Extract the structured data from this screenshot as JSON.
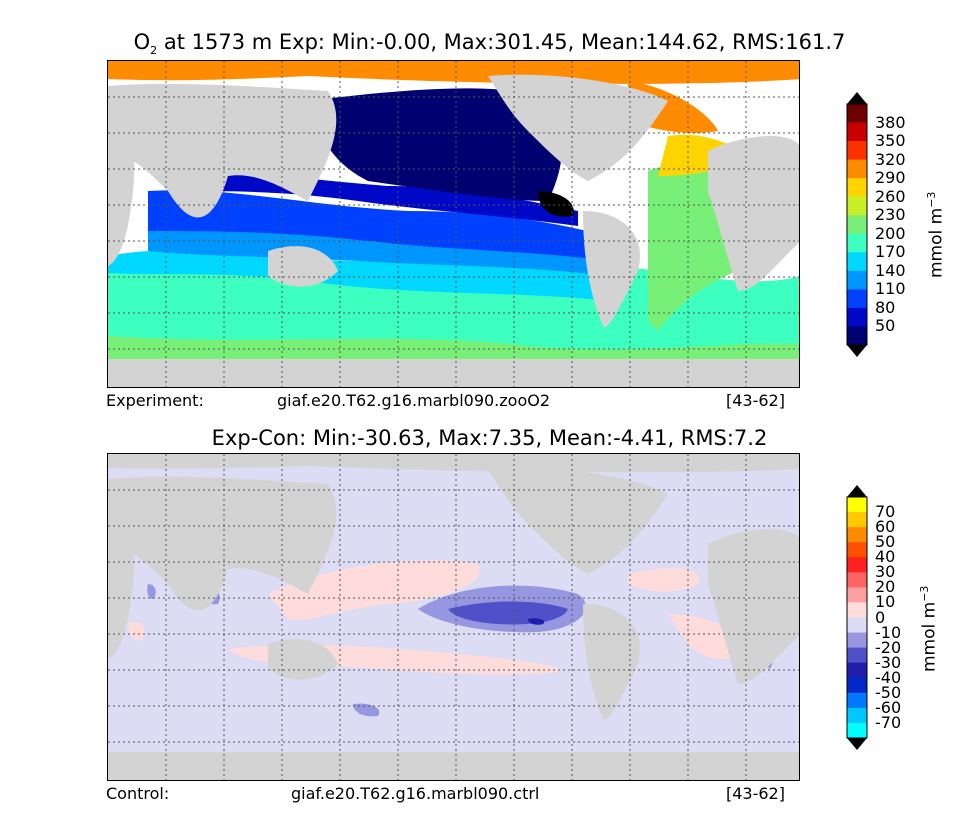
{
  "top": {
    "title_pre": "O",
    "title_sub": "2",
    "title_post": " at 1573 m Exp: Min:-0.00, Max:301.45, Mean:144.62, RMS:161.7",
    "caption_left": "Experiment:",
    "caption_mid": "giaf.e20.T62.g16.marbl090.zooO2",
    "caption_right": "[43-62]",
    "colorbar": {
      "labels": [
        "380",
        "350",
        "320",
        "290",
        "260",
        "230",
        "200",
        "170",
        "140",
        "110",
        "80",
        "50"
      ],
      "colors": [
        "#6e0000",
        "#c80000",
        "#ff3000",
        "#ff8c00",
        "#ffd400",
        "#c8f028",
        "#78f078",
        "#3cffc0",
        "#00d8ff",
        "#0096ff",
        "#0040ff",
        "#0008c8",
        "#000070"
      ],
      "over_color": "#000000",
      "under_color": "#000000",
      "unit": "mmol m",
      "unit_sup": "−3"
    }
  },
  "bottom": {
    "title": "Exp-Con: Min:-30.63, Max:7.35, Mean:-4.41, RMS:7.2",
    "caption_left": "Control:",
    "caption_mid": "giaf.e20.T62.g16.marbl090.ctrl",
    "caption_right": "[43-62]",
    "colorbar": {
      "labels": [
        "70",
        "60",
        "50",
        "40",
        "30",
        "20",
        "10",
        "0",
        "-10",
        "-20",
        "-30",
        "-40",
        "-50",
        "-60",
        "-70"
      ],
      "colors": [
        "#ffff00",
        "#ffc800",
        "#ff8c00",
        "#ff5000",
        "#ff2020",
        "#ff6464",
        "#ffa0a0",
        "#ffdcdc",
        "#dcdcf5",
        "#9696e1",
        "#5050c8",
        "#1e1eaa",
        "#0028c8",
        "#0078ff",
        "#00c8ff",
        "#00ffff"
      ],
      "over_color": "#000000",
      "under_color": "#000000",
      "unit": "mmol m",
      "unit_sup": "−3"
    }
  }
}
